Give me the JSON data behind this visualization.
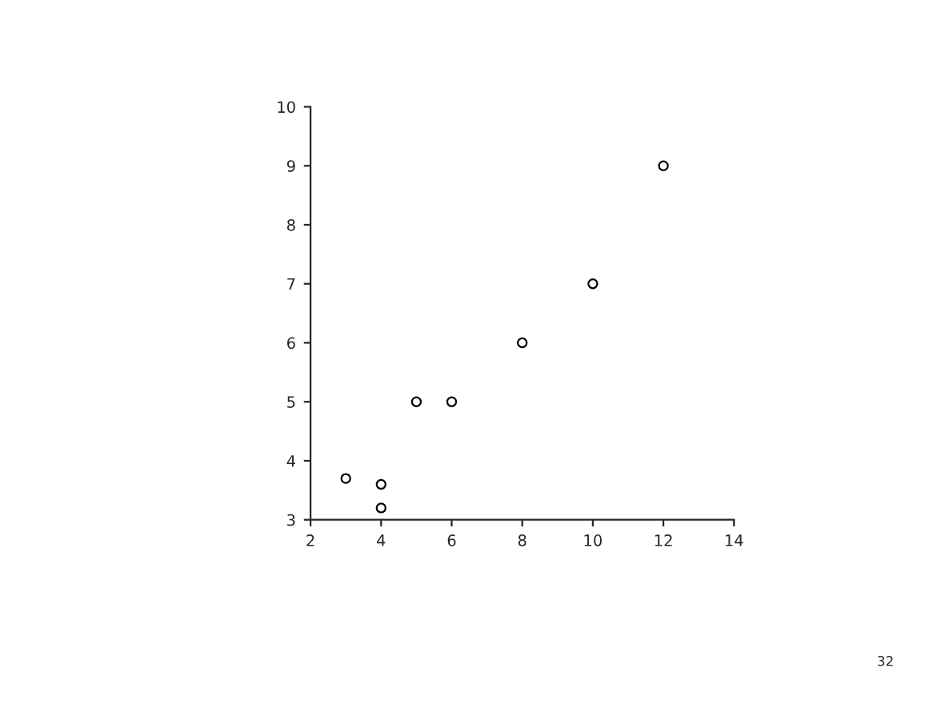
{
  "chart_data": {
    "type": "scatter",
    "x": [
      3,
      4,
      4,
      5,
      6,
      8,
      10,
      12
    ],
    "values": [
      3.7,
      3.6,
      3.2,
      5,
      5,
      6,
      7,
      9
    ],
    "color": "#000000",
    "marker": "circle",
    "xlim": [
      2,
      14
    ],
    "xticks": [
      2,
      4,
      6,
      8,
      10,
      12,
      14
    ],
    "ylim": [
      3,
      10
    ],
    "yticks": [
      3,
      4,
      5,
      6,
      7,
      8,
      9,
      10
    ],
    "grid": false,
    "annotations": [
      "32"
    ]
  }
}
